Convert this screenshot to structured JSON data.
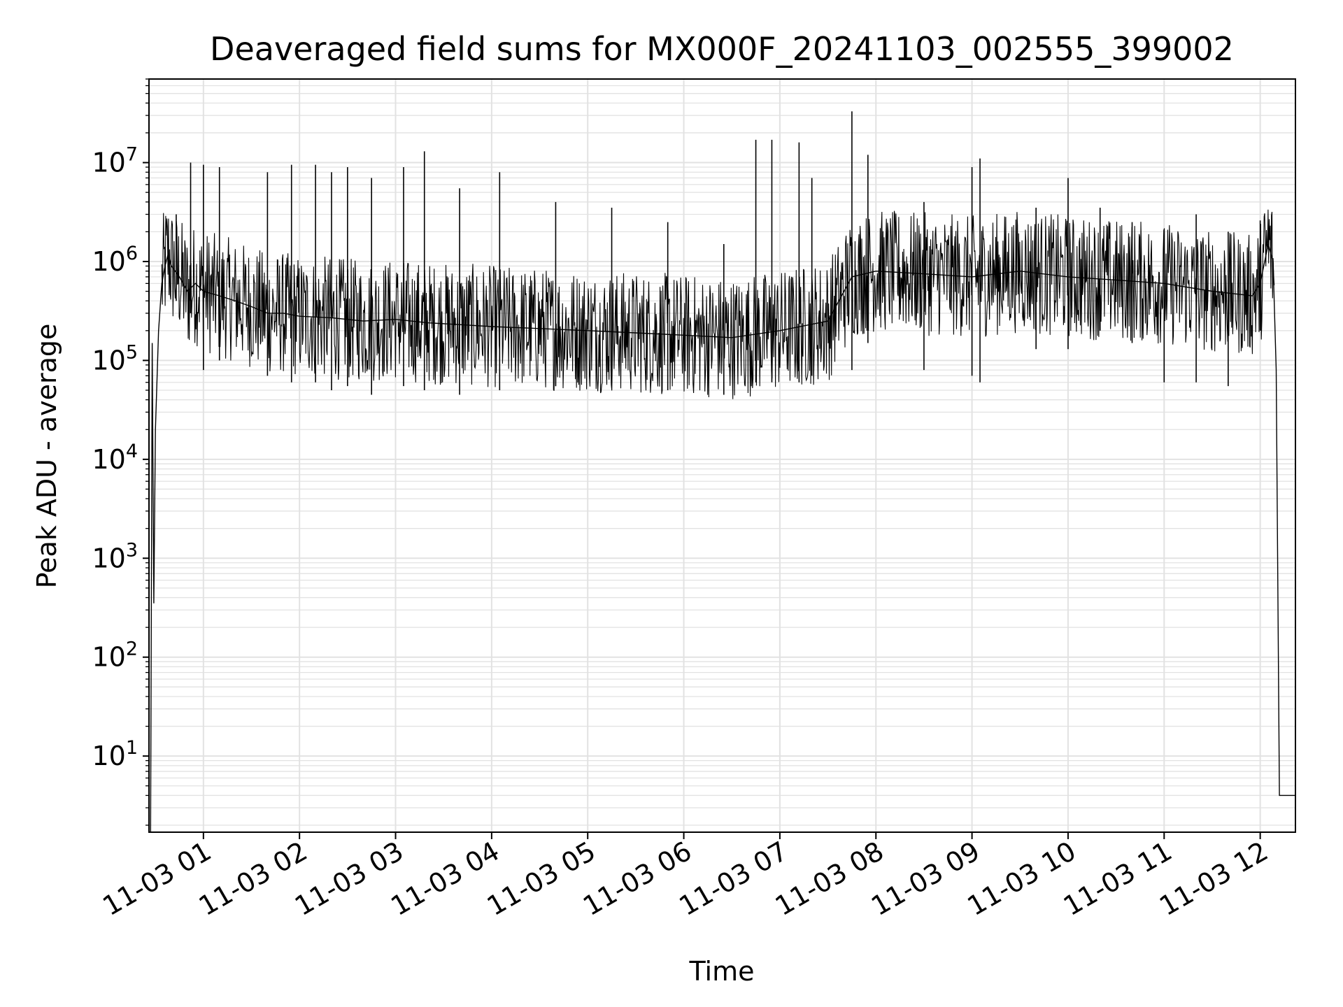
{
  "chart_data": {
    "type": "line",
    "title": "Deaveraged field sums for MX000F_20241103_002555_399002",
    "xlabel": "Time",
    "ylabel": "Peak ADU - average",
    "x_scale": "time",
    "y_scale": "log",
    "xlim": [
      "2024-11-03 00:26",
      "2024-11-03 12:22"
    ],
    "ylim": [
      1.7,
      70000000
    ],
    "grid": true,
    "line_color": "#000000",
    "grid_color": "#e2e2e2",
    "x_ticks": [
      {
        "value": "2024-11-03 01:00",
        "label": "11-03 01"
      },
      {
        "value": "2024-11-03 02:00",
        "label": "11-03 02"
      },
      {
        "value": "2024-11-03 03:00",
        "label": "11-03 03"
      },
      {
        "value": "2024-11-03 04:00",
        "label": "11-03 04"
      },
      {
        "value": "2024-11-03 05:00",
        "label": "11-03 05"
      },
      {
        "value": "2024-11-03 06:00",
        "label": "11-03 06"
      },
      {
        "value": "2024-11-03 07:00",
        "label": "11-03 07"
      },
      {
        "value": "2024-11-03 08:00",
        "label": "11-03 08"
      },
      {
        "value": "2024-11-03 09:00",
        "label": "11-03 09"
      },
      {
        "value": "2024-11-03 10:00",
        "label": "11-03 10"
      },
      {
        "value": "2024-11-03 11:00",
        "label": "11-03 11"
      },
      {
        "value": "2024-11-03 12:00",
        "label": "11-03 12"
      }
    ],
    "y_ticks": [
      {
        "value": 10,
        "base": "10",
        "exp": "1"
      },
      {
        "value": 100,
        "base": "10",
        "exp": "2"
      },
      {
        "value": 1000,
        "base": "10",
        "exp": "3"
      },
      {
        "value": 10000,
        "base": "10",
        "exp": "4"
      },
      {
        "value": 100000,
        "base": "10",
        "exp": "5"
      },
      {
        "value": 1000000,
        "base": "10",
        "exp": "6"
      },
      {
        "value": 10000000,
        "base": "10",
        "exp": "7"
      }
    ],
    "series": [
      {
        "x": [
          "2024-11-03 00:26",
          "2024-11-03 00:27",
          "2024-11-03 00:28",
          "2024-11-03 00:29",
          "2024-11-03 00:30",
          "2024-11-03 00:32",
          "2024-11-03 00:34",
          "2024-11-03 00:36",
          "2024-11-03 00:38",
          "2024-11-03 00:40",
          "2024-11-03 00:45",
          "2024-11-03 00:50",
          "2024-11-03 00:55",
          "2024-11-03 01:00",
          "2024-11-03 01:10",
          "2024-11-03 01:20",
          "2024-11-03 01:30",
          "2024-11-03 01:40",
          "2024-11-03 01:50",
          "2024-11-03 02:00",
          "2024-11-03 02:20",
          "2024-11-03 02:40",
          "2024-11-03 03:00",
          "2024-11-03 03:20",
          "2024-11-03 03:40",
          "2024-11-03 04:00",
          "2024-11-03 04:30",
          "2024-11-03 05:00",
          "2024-11-03 05:30",
          "2024-11-03 06:00",
          "2024-11-03 06:30",
          "2024-11-03 07:00",
          "2024-11-03 07:30",
          "2024-11-03 07:45",
          "2024-11-03 08:00",
          "2024-11-03 08:30",
          "2024-11-03 09:00",
          "2024-11-03 09:30",
          "2024-11-03 10:00",
          "2024-11-03 10:30",
          "2024-11-03 11:00",
          "2024-11-03 11:30",
          "2024-11-03 11:55",
          "2024-11-03 12:00",
          "2024-11-03 12:05",
          "2024-11-03 12:08",
          "2024-11-03 12:10",
          "2024-11-03 12:12",
          "2024-11-03 12:22"
        ],
        "values": [
          1.7,
          1.7,
          150000,
          350,
          20000,
          200000,
          600000,
          900000,
          1200000,
          900000,
          700000,
          500000,
          600000,
          500000,
          450000,
          400000,
          350000,
          300000,
          300000,
          280000,
          270000,
          250000,
          260000,
          240000,
          230000,
          220000,
          210000,
          200000,
          190000,
          180000,
          170000,
          200000,
          250000,
          700000,
          800000,
          750000,
          700000,
          800000,
          700000,
          650000,
          600000,
          500000,
          450000,
          600000,
          1500000,
          1000000,
          80000,
          4,
          4
        ]
      }
    ],
    "spikes": [
      {
        "x": "2024-11-03 00:43",
        "high": 3000000,
        "low": 400000
      },
      {
        "x": "2024-11-03 00:52",
        "high": 10000000,
        "low": 300000
      },
      {
        "x": "2024-11-03 01:00",
        "high": 9500000,
        "low": 80000
      },
      {
        "x": "2024-11-03 01:10",
        "high": 9000000,
        "low": 100000
      },
      {
        "x": "2024-11-03 01:40",
        "high": 8000000,
        "low": 70000
      },
      {
        "x": "2024-11-03 01:55",
        "high": 9500000,
        "low": 60000
      },
      {
        "x": "2024-11-03 02:10",
        "high": 9500000,
        "low": 60000
      },
      {
        "x": "2024-11-03 02:20",
        "high": 8000000,
        "low": 50000
      },
      {
        "x": "2024-11-03 02:30",
        "high": 9000000,
        "low": 55000
      },
      {
        "x": "2024-11-03 02:45",
        "high": 7000000,
        "low": 45000
      },
      {
        "x": "2024-11-03 03:05",
        "high": 9000000,
        "low": 55000
      },
      {
        "x": "2024-11-03 03:18",
        "high": 13000000,
        "low": 50000
      },
      {
        "x": "2024-11-03 03:40",
        "high": 5500000,
        "low": 45000
      },
      {
        "x": "2024-11-03 04:05",
        "high": 8000000,
        "low": 50000
      },
      {
        "x": "2024-11-03 04:40",
        "high": 4000000,
        "low": 55000
      },
      {
        "x": "2024-11-03 05:15",
        "high": 3500000,
        "low": 60000
      },
      {
        "x": "2024-11-03 05:50",
        "high": 2500000,
        "low": 50000
      },
      {
        "x": "2024-11-03 06:25",
        "high": 1500000,
        "low": 45000
      },
      {
        "x": "2024-11-03 06:45",
        "high": 17000000,
        "low": 60000
      },
      {
        "x": "2024-11-03 06:55",
        "high": 17000000,
        "low": 60000
      },
      {
        "x": "2024-11-03 07:12",
        "high": 16000000,
        "low": 60000
      },
      {
        "x": "2024-11-03 07:20",
        "high": 7000000,
        "low": 70000
      },
      {
        "x": "2024-11-03 07:45",
        "high": 33000000,
        "low": 80000
      },
      {
        "x": "2024-11-03 07:55",
        "high": 12000000,
        "low": 150000
      },
      {
        "x": "2024-11-03 08:30",
        "high": 4000000,
        "low": 80000
      },
      {
        "x": "2024-11-03 09:00",
        "high": 9000000,
        "low": 70000
      },
      {
        "x": "2024-11-03 09:05",
        "high": 11000000,
        "low": 60000
      },
      {
        "x": "2024-11-03 09:40",
        "high": 3500000,
        "low": 130000
      },
      {
        "x": "2024-11-03 10:00",
        "high": 7000000,
        "low": 130000
      },
      {
        "x": "2024-11-03 10:20",
        "high": 3500000,
        "low": 200000
      },
      {
        "x": "2024-11-03 10:40",
        "high": 2500000,
        "low": 150000
      },
      {
        "x": "2024-11-03 11:00",
        "high": 2000000,
        "low": 60000
      },
      {
        "x": "2024-11-03 11:20",
        "high": 3000000,
        "low": 60000
      },
      {
        "x": "2024-11-03 11:40",
        "high": 2000000,
        "low": 55000
      },
      {
        "x": "2024-11-03 12:00",
        "high": 2600000,
        "low": 200000
      }
    ]
  }
}
